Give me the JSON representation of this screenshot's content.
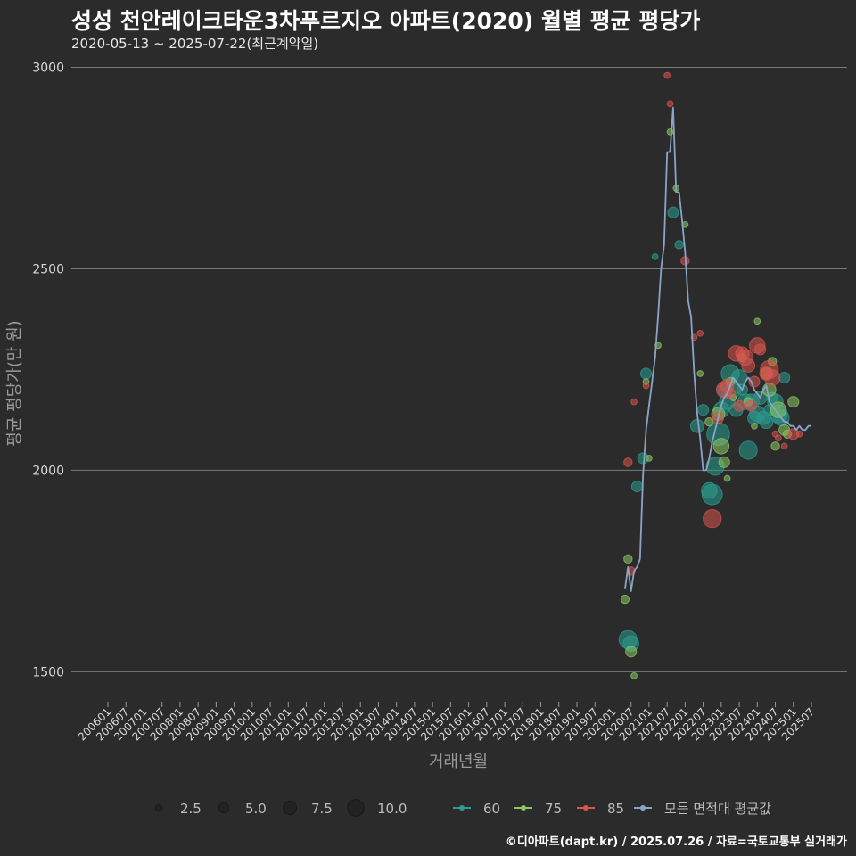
{
  "header": {
    "title": "성성 천안레이크타운3차푸르지오 아파트(2020) 월별 평균 평당가",
    "subtitle": "2020-05-13 ~ 2025-07-22(최근계약일)"
  },
  "footer": {
    "caption": "©디아파트(dapt.kr) / 2025.07.26 / 자료=국토교통부 실거래가"
  },
  "colors": {
    "s60": "#2a9d8f",
    "s75": "#8cc665",
    "s85": "#d9534f",
    "avg": "#8aa4c8",
    "grid": "#7a7a7a"
  },
  "chart_data": {
    "type": "scatter",
    "title": "성성 천안레이크타운3차푸르지오 아파트(2020) 월별 평균 평당가",
    "xlabel": "거래년월",
    "ylabel": "평균 평당가(만 원)",
    "ylim": [
      1430,
      3030
    ],
    "y_ticks": [
      1500,
      2000,
      2500,
      3000
    ],
    "x_range": [
      "2006-01",
      "2025-07"
    ],
    "x_ticks": [
      "200601",
      "200607",
      "200701",
      "200707",
      "200801",
      "200807",
      "200901",
      "200907",
      "201001",
      "201007",
      "201101",
      "201107",
      "201201",
      "201207",
      "201301",
      "201307",
      "201401",
      "201407",
      "201501",
      "201507",
      "201601",
      "201607",
      "201701",
      "201707",
      "201801",
      "201807",
      "201901",
      "201907",
      "202001",
      "202007",
      "202101",
      "202107",
      "202201",
      "202207",
      "202301",
      "202307",
      "202401",
      "202407",
      "202501",
      "202507"
    ],
    "size_legend": {
      "values": [
        2.5,
        5.0,
        7.5,
        10.0
      ],
      "labels": [
        "2.5",
        "5.0",
        "7.5",
        "10.0"
      ]
    },
    "series_legend": [
      "60",
      "75",
      "85",
      "모든 면적대 평균값"
    ],
    "series": [
      {
        "name": "60",
        "points": [
          [
            "2020-06",
            1580,
            6
          ],
          [
            "2020-07",
            1570,
            5
          ],
          [
            "2020-09",
            1960,
            3
          ],
          [
            "2020-11",
            2030,
            3
          ],
          [
            "2020-12",
            2240,
            3
          ],
          [
            "2021-03",
            2530,
            1
          ],
          [
            "2021-09",
            2640,
            3
          ],
          [
            "2021-11",
            2560,
            2
          ],
          [
            "2022-05",
            2110,
            4
          ],
          [
            "2022-07",
            2150,
            3
          ],
          [
            "2022-09",
            1950,
            5
          ],
          [
            "2022-10",
            1940,
            7
          ],
          [
            "2022-11",
            2010,
            6
          ],
          [
            "2022-12",
            2090,
            8
          ],
          [
            "2023-01",
            2150,
            5
          ],
          [
            "2023-02",
            2200,
            4
          ],
          [
            "2023-03",
            2170,
            5
          ],
          [
            "2023-04",
            2240,
            6
          ],
          [
            "2023-05",
            2200,
            5
          ],
          [
            "2023-06",
            2150,
            4
          ],
          [
            "2023-07",
            2230,
            5
          ],
          [
            "2023-08",
            2200,
            3
          ],
          [
            "2023-09",
            2170,
            5
          ],
          [
            "2023-10",
            2050,
            6
          ],
          [
            "2023-11",
            2170,
            5
          ],
          [
            "2023-12",
            2130,
            4
          ],
          [
            "2024-01",
            2140,
            5
          ],
          [
            "2024-02",
            2180,
            4
          ],
          [
            "2024-03",
            2130,
            4
          ],
          [
            "2024-04",
            2120,
            4
          ],
          [
            "2024-05",
            2150,
            3
          ],
          [
            "2024-06",
            2180,
            3
          ],
          [
            "2024-07",
            2170,
            5
          ],
          [
            "2024-08",
            2140,
            6
          ],
          [
            "2024-09",
            2130,
            5
          ],
          [
            "2024-10",
            2230,
            3
          ]
        ]
      },
      {
        "name": "75",
        "points": [
          [
            "2020-05",
            1680,
            2
          ],
          [
            "2020-06",
            1780,
            2
          ],
          [
            "2020-07",
            1550,
            3
          ],
          [
            "2020-08",
            1490,
            1
          ],
          [
            "2020-12",
            2220,
            1
          ],
          [
            "2021-01",
            2030,
            1
          ],
          [
            "2021-04",
            2310,
            1
          ],
          [
            "2021-08",
            2840,
            1
          ],
          [
            "2021-10",
            2700,
            1
          ],
          [
            "2022-01",
            2610,
            1
          ],
          [
            "2022-06",
            2240,
            1
          ],
          [
            "2022-09",
            2120,
            2
          ],
          [
            "2022-12",
            2140,
            4
          ],
          [
            "2023-01",
            2060,
            5
          ],
          [
            "2023-02",
            2020,
            3
          ],
          [
            "2023-03",
            1980,
            1
          ],
          [
            "2023-04",
            2220,
            2
          ],
          [
            "2023-05",
            2180,
            1
          ],
          [
            "2023-08",
            2280,
            2
          ],
          [
            "2023-10",
            2170,
            2
          ],
          [
            "2023-12",
            2110,
            1
          ],
          [
            "2024-01",
            2370,
            1
          ],
          [
            "2024-04",
            2240,
            3
          ],
          [
            "2024-05",
            2200,
            4
          ],
          [
            "2024-06",
            2270,
            2
          ],
          [
            "2024-07",
            2060,
            2
          ],
          [
            "2024-08",
            2150,
            5
          ],
          [
            "2024-10",
            2100,
            3
          ],
          [
            "2024-11",
            2090,
            2
          ],
          [
            "2025-01",
            2170,
            3
          ]
        ]
      },
      {
        "name": "85",
        "points": [
          [
            "2020-06",
            2020,
            2
          ],
          [
            "2020-07",
            1750,
            2
          ],
          [
            "2020-08",
            2170,
            1
          ],
          [
            "2020-12",
            2210,
            1
          ],
          [
            "2021-07",
            2980,
            1
          ],
          [
            "2021-08",
            2910,
            1
          ],
          [
            "2022-01",
            2520,
            2
          ],
          [
            "2022-04",
            2330,
            1
          ],
          [
            "2022-06",
            2340,
            1
          ],
          [
            "2022-10",
            1880,
            6
          ],
          [
            "2022-12",
            2130,
            3
          ],
          [
            "2023-02",
            2200,
            5
          ],
          [
            "2023-03",
            2210,
            4
          ],
          [
            "2023-04",
            2190,
            3
          ],
          [
            "2023-06",
            2290,
            5
          ],
          [
            "2023-07",
            2160,
            3
          ],
          [
            "2023-08",
            2290,
            4
          ],
          [
            "2023-09",
            2280,
            5
          ],
          [
            "2023-10",
            2260,
            4
          ],
          [
            "2023-11",
            2160,
            3
          ],
          [
            "2023-12",
            2220,
            3
          ],
          [
            "2024-01",
            2310,
            5
          ],
          [
            "2024-02",
            2300,
            3
          ],
          [
            "2024-04",
            2240,
            4
          ],
          [
            "2024-05",
            2250,
            6
          ],
          [
            "2024-06",
            2230,
            5
          ],
          [
            "2024-07",
            2090,
            1
          ],
          [
            "2024-08",
            2080,
            1
          ],
          [
            "2024-10",
            2060,
            1
          ],
          [
            "2025-01",
            2090,
            3
          ],
          [
            "2025-03",
            2090,
            1
          ]
        ]
      }
    ],
    "average": {
      "name": "모든 면적대 평균값",
      "points": [
        [
          "2020-05",
          1705
        ],
        [
          "2020-06",
          1760
        ],
        [
          "2020-07",
          1700
        ],
        [
          "2020-08",
          1750
        ],
        [
          "2020-09",
          1760
        ],
        [
          "2020-10",
          1780
        ],
        [
          "2020-11",
          1990
        ],
        [
          "2020-12",
          2100
        ],
        [
          "2021-01",
          2160
        ],
        [
          "2021-02",
          2220
        ],
        [
          "2021-03",
          2280
        ],
        [
          "2021-04",
          2380
        ],
        [
          "2021-05",
          2500
        ],
        [
          "2021-06",
          2560
        ],
        [
          "2021-07",
          2790
        ],
        [
          "2021-08",
          2790
        ],
        [
          "2021-09",
          2900
        ],
        [
          "2021-10",
          2690
        ],
        [
          "2021-11",
          2690
        ],
        [
          "2021-12",
          2620
        ],
        [
          "2022-01",
          2540
        ],
        [
          "2022-02",
          2420
        ],
        [
          "2022-03",
          2380
        ],
        [
          "2022-04",
          2240
        ],
        [
          "2022-05",
          2140
        ],
        [
          "2022-06",
          2080
        ],
        [
          "2022-07",
          2000
        ],
        [
          "2022-08",
          2000
        ],
        [
          "2022-09",
          2030
        ],
        [
          "2022-10",
          2070
        ],
        [
          "2022-11",
          2100
        ],
        [
          "2022-12",
          2130
        ],
        [
          "2023-01",
          2160
        ],
        [
          "2023-02",
          2180
        ],
        [
          "2023-03",
          2190
        ],
        [
          "2023-04",
          2210
        ],
        [
          "2023-05",
          2230
        ],
        [
          "2023-06",
          2220
        ],
        [
          "2023-07",
          2210
        ],
        [
          "2023-08",
          2200
        ],
        [
          "2023-09",
          2220
        ],
        [
          "2023-10",
          2230
        ],
        [
          "2023-11",
          2220
        ],
        [
          "2023-12",
          2200
        ],
        [
          "2024-01",
          2190
        ],
        [
          "2024-02",
          2180
        ],
        [
          "2024-03",
          2200
        ],
        [
          "2024-04",
          2210
        ],
        [
          "2024-05",
          2170
        ],
        [
          "2024-06",
          2160
        ],
        [
          "2024-07",
          2150
        ],
        [
          "2024-08",
          2140
        ],
        [
          "2024-09",
          2130
        ],
        [
          "2024-10",
          2120
        ],
        [
          "2024-11",
          2120
        ],
        [
          "2024-12",
          2110
        ],
        [
          "2025-01",
          2110
        ],
        [
          "2025-02",
          2100
        ],
        [
          "2025-03",
          2110
        ],
        [
          "2025-04",
          2100
        ],
        [
          "2025-05",
          2100
        ],
        [
          "2025-06",
          2110
        ],
        [
          "2025-07",
          2110
        ]
      ]
    }
  }
}
